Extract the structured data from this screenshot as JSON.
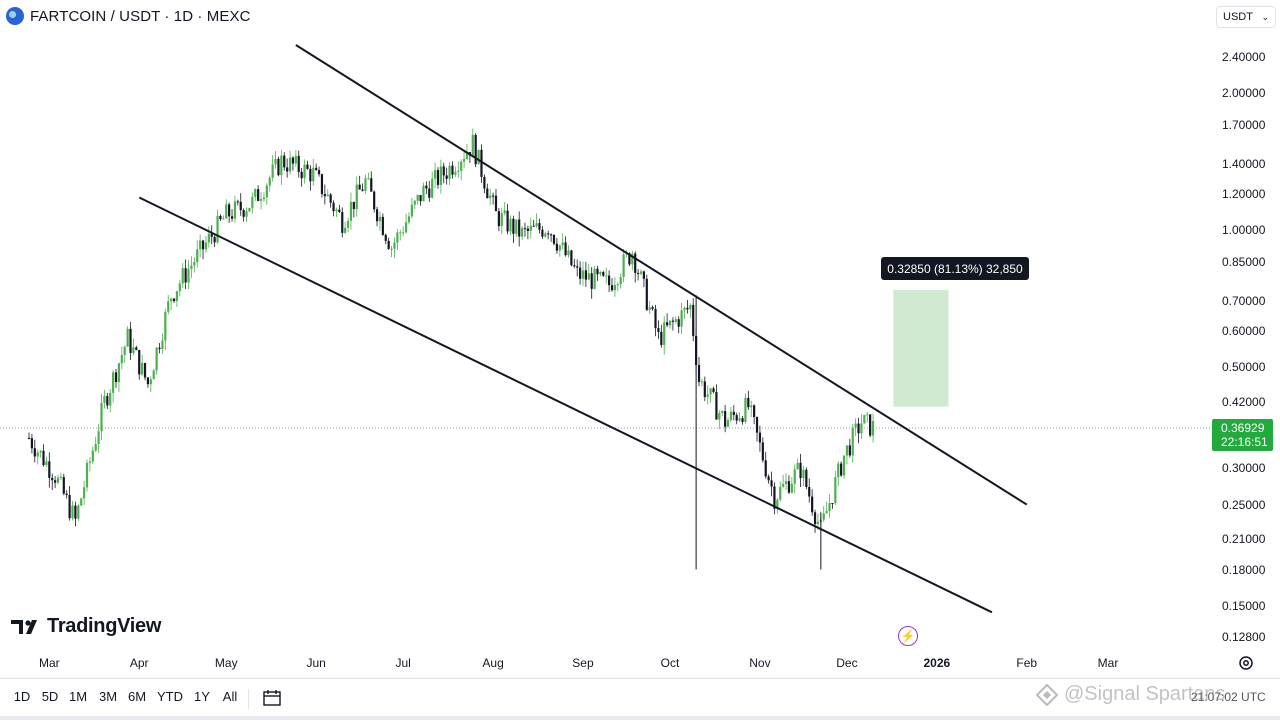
{
  "header": {
    "title": "FARTCOIN / USDT · 1D · MEXC",
    "currency": "USDT"
  },
  "price_axis": {
    "labels": [
      "2.40000",
      "2.00000",
      "1.70000",
      "1.40000",
      "1.20000",
      "1.00000",
      "0.85000",
      "0.70000",
      "0.60000",
      "0.50000",
      "0.42000",
      "0.30000",
      "0.25000",
      "0.21000",
      "0.18000",
      "0.15000",
      "0.12800"
    ],
    "current_price": "0.36929",
    "countdown": "22:16:51"
  },
  "time_axis": {
    "labels": [
      "Mar",
      "Apr",
      "May",
      "Jun",
      "Jul",
      "Aug",
      "Sep",
      "Oct",
      "Nov",
      "Dec",
      "2026",
      "Feb",
      "Mar"
    ]
  },
  "measure": {
    "label": "0.32850 (81.13%) 32,850"
  },
  "brand": {
    "name": "TradingView"
  },
  "range_buttons": [
    "1D",
    "5D",
    "1M",
    "3M",
    "6M",
    "YTD",
    "1Y",
    "All"
  ],
  "watermark": {
    "text": "@Signal Spartans",
    "clock": "21:07:02 UTC"
  },
  "colors": {
    "up": "#26a69a",
    "up_candle": "#4caf50",
    "down": "#131722",
    "current_badge": "#22ab3c",
    "measure_box": "#c8e6c9"
  },
  "chart_data": {
    "type": "candlestick",
    "symbol": "FARTCOIN / USDT",
    "interval": "1D",
    "exchange": "MEXC",
    "y_scale": "log",
    "ylim": [
      0.12,
      2.6
    ],
    "last_price": 0.36929,
    "close_path": [
      {
        "date": "2025-02-22",
        "close": 0.35
      },
      {
        "date": "2025-03-03",
        "close": 0.29
      },
      {
        "date": "2025-03-10",
        "close": 0.23
      },
      {
        "date": "2025-03-20",
        "close": 0.42
      },
      {
        "date": "2025-03-28",
        "close": 0.58
      },
      {
        "date": "2025-04-04",
        "close": 0.46
      },
      {
        "date": "2025-04-12",
        "close": 0.72
      },
      {
        "date": "2025-04-20",
        "close": 0.86
      },
      {
        "date": "2025-05-01",
        "close": 1.08
      },
      {
        "date": "2025-05-10",
        "close": 1.15
      },
      {
        "date": "2025-05-20",
        "close": 1.42
      },
      {
        "date": "2025-05-31",
        "close": 1.33
      },
      {
        "date": "2025-06-10",
        "close": 1.05
      },
      {
        "date": "2025-06-18",
        "close": 1.28
      },
      {
        "date": "2025-06-27",
        "close": 0.92
      },
      {
        "date": "2025-07-08",
        "close": 1.22
      },
      {
        "date": "2025-07-16",
        "close": 1.35
      },
      {
        "date": "2025-07-25",
        "close": 1.55
      },
      {
        "date": "2025-08-02",
        "close": 1.08
      },
      {
        "date": "2025-08-11",
        "close": 0.98
      },
      {
        "date": "2025-08-20",
        "close": 1.02
      },
      {
        "date": "2025-08-30",
        "close": 0.8
      },
      {
        "date": "2025-09-10",
        "close": 0.76
      },
      {
        "date": "2025-09-18",
        "close": 0.9
      },
      {
        "date": "2025-09-27",
        "close": 0.58
      },
      {
        "date": "2025-10-08",
        "close": 0.68
      },
      {
        "date": "2025-10-11",
        "close": 0.47
      },
      {
        "date": "2025-10-20",
        "close": 0.38
      },
      {
        "date": "2025-10-28",
        "close": 0.41
      },
      {
        "date": "2025-11-06",
        "close": 0.26
      },
      {
        "date": "2025-11-15",
        "close": 0.3
      },
      {
        "date": "2025-11-22",
        "close": 0.22
      },
      {
        "date": "2025-11-30",
        "close": 0.32
      },
      {
        "date": "2025-12-06",
        "close": 0.38
      },
      {
        "date": "2025-12-10",
        "close": 0.36929
      }
    ],
    "trendlines": [
      {
        "name": "upper",
        "from": {
          "date": "2025-05-25",
          "price": 2.55
        },
        "to": {
          "date": "2026-02-01",
          "price": 0.25
        }
      },
      {
        "name": "lower",
        "from": {
          "date": "2025-04-01",
          "price": 1.18
        },
        "to": {
          "date": "2026-01-20",
          "price": 0.145
        }
      }
    ],
    "measure_box": {
      "from": {
        "date": "2025-12-17",
        "price": 0.41
      },
      "to": {
        "date": "2026-01-05",
        "price": 0.74
      }
    },
    "wicks": [
      {
        "date": "2025-10-10",
        "low": 0.18,
        "high": 0.72
      },
      {
        "date": "2025-11-22",
        "low": 0.18,
        "high": 0.24
      }
    ]
  }
}
